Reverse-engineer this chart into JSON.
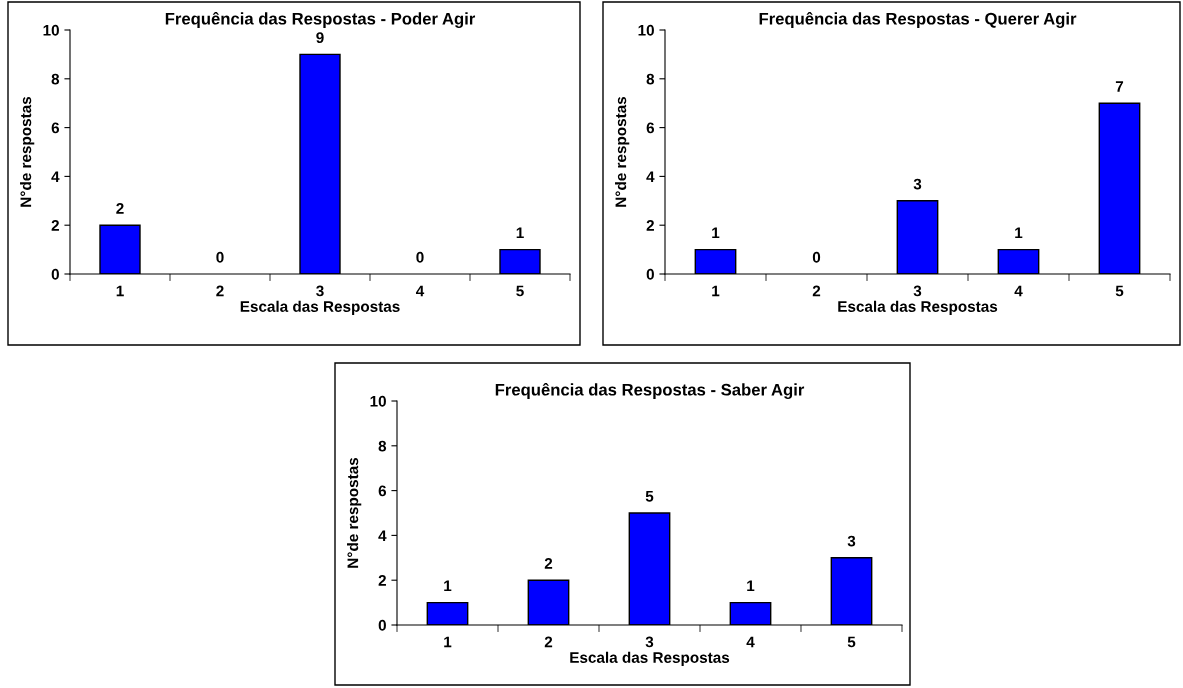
{
  "chart_data": [
    {
      "type": "bar",
      "title": "Frequência das Respostas - Poder Agir",
      "xlabel": "Escala das Respostas",
      "ylabel": "N°de respostas",
      "categories": [
        "1",
        "2",
        "3",
        "4",
        "5"
      ],
      "values": [
        2,
        0,
        9,
        0,
        1
      ],
      "color": "#0000ff",
      "ylim": [
        0,
        10
      ],
      "yticks": [
        0,
        2,
        4,
        6,
        8,
        10
      ],
      "data_labels": true
    },
    {
      "type": "bar",
      "title": "Frequência das Respostas - Querer Agir",
      "xlabel": "Escala das Respostas",
      "ylabel": "N°de respostas",
      "categories": [
        "1",
        "2",
        "3",
        "4",
        "5"
      ],
      "values": [
        1,
        0,
        3,
        1,
        7
      ],
      "color": "#0000ff",
      "ylim": [
        0,
        10
      ],
      "yticks": [
        0,
        2,
        4,
        6,
        8,
        10
      ],
      "data_labels": true
    },
    {
      "type": "bar",
      "title": "Frequência das Respostas - Saber Agir",
      "xlabel": "Escala das Respostas",
      "ylabel": "N°de respostas",
      "categories": [
        "1",
        "2",
        "3",
        "4",
        "5"
      ],
      "values": [
        1,
        2,
        5,
        1,
        3
      ],
      "color": "#0000ff",
      "ylim": [
        0,
        10
      ],
      "yticks": [
        0,
        2,
        4,
        6,
        8,
        10
      ],
      "data_labels": true
    }
  ]
}
